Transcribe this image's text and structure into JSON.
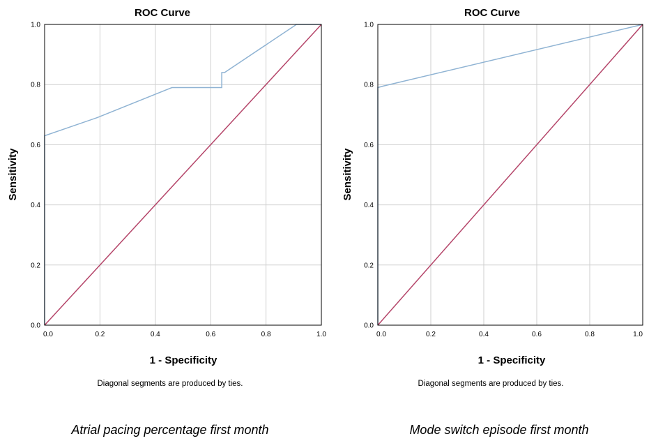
{
  "figure": {
    "captions": [
      "Atrial pacing percentage first month",
      "Mode switch episode first month"
    ]
  },
  "colors": {
    "roc": "#8fb3d3",
    "reference": "#b5466a",
    "grid": "#cfcfcf",
    "frame": "#000000"
  },
  "chart_data": [
    {
      "type": "line",
      "title": "ROC Curve",
      "xlabel": "1 - Specificity",
      "ylabel": "Sensitivity",
      "xlim": [
        0,
        1
      ],
      "ylim": [
        0,
        1
      ],
      "grid": true,
      "xticks": [
        "0.0",
        "0.2",
        "0.4",
        "0.6",
        "0.8",
        "1.0"
      ],
      "yticks": [
        "0.0",
        "0.2",
        "0.4",
        "0.6",
        "0.8",
        "1.0"
      ],
      "note": "Diagonal segments are produced by ties.",
      "series": [
        {
          "role": "roc",
          "x": [
            0,
            0,
            0.19,
            0.46,
            0.64,
            0.64,
            0.65,
            0.91,
            1.0
          ],
          "y": [
            0,
            0.63,
            0.69,
            0.79,
            0.79,
            0.84,
            0.84,
            1.0,
            1.0
          ]
        },
        {
          "role": "reference",
          "x": [
            0,
            1
          ],
          "y": [
            0,
            1
          ]
        }
      ]
    },
    {
      "type": "line",
      "title": "ROC Curve",
      "xlabel": "1 - Specificity",
      "ylabel": "Sensitivity",
      "xlim": [
        0,
        1
      ],
      "ylim": [
        0,
        1
      ],
      "grid": true,
      "xticks": [
        "0.0",
        "0.2",
        "0.4",
        "0.6",
        "0.8",
        "1.0"
      ],
      "yticks": [
        "0.0",
        "0.2",
        "0.4",
        "0.6",
        "0.8",
        "1.0"
      ],
      "note": "Diagonal segments are produced by ties.",
      "series": [
        {
          "role": "roc",
          "x": [
            0,
            0,
            0.02,
            1.0
          ],
          "y": [
            0,
            0.79,
            0.795,
            1.0
          ]
        },
        {
          "role": "reference",
          "x": [
            0,
            1
          ],
          "y": [
            0,
            1
          ]
        }
      ]
    }
  ]
}
